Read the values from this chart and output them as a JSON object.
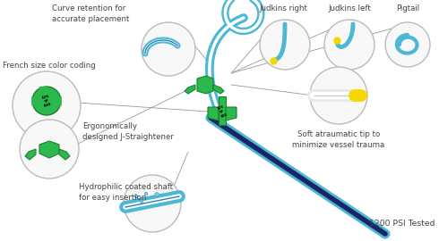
{
  "bg_color": "#ffffff",
  "labels": {
    "curve_retention": "Curve retention for\naccurate placement",
    "french_size": "French size color coding",
    "j_straightener": "Ergonomically\ndesigned J-Straightener",
    "coated_shaft": "Hydrophilic coated shaft\nfor easy insertion",
    "judkins_right": "Judkins right",
    "judkins_left": "Judkins left",
    "pigtail": "Pigtail",
    "soft_tip": "Soft atraumatic tip to\nminimize vessel trauma",
    "psi": "1200 PSI Tested"
  },
  "colors": {
    "blue_light": "#4db8d4",
    "blue_mid": "#2a7fb8",
    "blue_dark": "#1a2566",
    "green": "#2db84e",
    "green_dark": "#1a8030",
    "white": "#ffffff",
    "circle_bg": "#f8f8f8",
    "circle_edge": "#bbbbbb",
    "text": "#444444",
    "yellow": "#f5d800",
    "line_color": "#999999"
  },
  "figsize": [
    4.9,
    2.7
  ],
  "dpi": 100
}
